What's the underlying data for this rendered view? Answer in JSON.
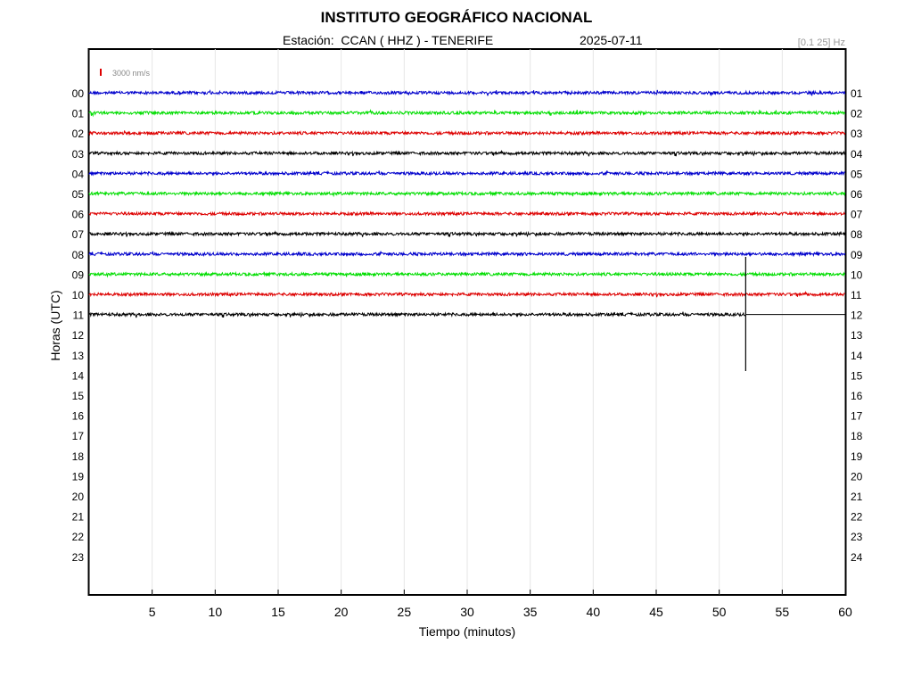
{
  "chart_data": {
    "type": "line",
    "title": "INSTITUTO GEOGRÁFICO NACIONAL",
    "station": "Estación:  CCAN ( HHZ ) - TENERIFE",
    "date": "2025-07-11",
    "filter": "[0.1 25] Hz",
    "scale_label": "3000 nm/s",
    "xlabel": "Tiempo (minutos)",
    "ylabel": "Horas (UTC)",
    "xlim": [
      0,
      60
    ],
    "x_ticks": [
      "5",
      "10",
      "15",
      "20",
      "25",
      "30",
      "35",
      "40",
      "45",
      "50",
      "55",
      "60"
    ],
    "left_hours": [
      "00",
      "01",
      "02",
      "03",
      "04",
      "05",
      "06",
      "07",
      "08",
      "09",
      "10",
      "11",
      "12",
      "13",
      "14",
      "15",
      "16",
      "17",
      "18",
      "19",
      "20",
      "21",
      "22",
      "23"
    ],
    "right_hours": [
      "01",
      "02",
      "03",
      "04",
      "05",
      "06",
      "07",
      "08",
      "09",
      "10",
      "11",
      "12",
      "13",
      "14",
      "15",
      "16",
      "17",
      "18",
      "19",
      "20",
      "21",
      "22",
      "23",
      "24"
    ],
    "trace_colors": [
      "#0000cc",
      "#00dd00",
      "#dd0000",
      "#000000"
    ],
    "grid": "vertical",
    "traces_recorded_hours": 12,
    "event": {
      "hour": "11",
      "minute": 52.1
    }
  }
}
